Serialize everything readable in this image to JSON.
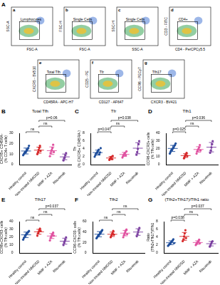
{
  "panel_a": {
    "label": "A",
    "plots": [
      {
        "label": "a",
        "x": "FSC-A",
        "y": "SSC-A",
        "gate": "Lymphocytes"
      },
      {
        "label": "b",
        "x": "FSC-A",
        "y": "FSC-H",
        "gate": "Single Cells"
      },
      {
        "label": "c",
        "x": "SSC-A",
        "y": "SSC-H",
        "gate": "Single Cells"
      },
      {
        "label": "d",
        "x": "CD4 - PerCPCy5.5",
        "y": "CD3 - FITC",
        "gate": "CD4+"
      },
      {
        "label": "e",
        "x": "CD45RA - APC-H7",
        "y": "CXCR5 - BV510",
        "gate": "Total Tfh"
      },
      {
        "label": "f",
        "x": "CD127 - AF647",
        "y": "CD25 - PE",
        "gate": "Tfr"
      },
      {
        "label": "g",
        "x": "CXCR3 - BV421",
        "y": "CCR6 - PECy7",
        "gate": "Tfh17"
      }
    ]
  },
  "chart_data": [
    {
      "type": "scatter",
      "label": "B",
      "title": "Total Tfh",
      "ylabel": [
        "CXCR5+ CD45RA-",
        "(% CD4+ T cells)"
      ],
      "categories": [
        "Healthy control",
        "Non-treated NMOSD",
        "MMF + AZA",
        "Rituximab"
      ],
      "colors": [
        "#1f4e9c",
        "#d62728",
        "#e052a0",
        "#7b3fa0"
      ],
      "values": [
        [
          9,
          10,
          11,
          12,
          12,
          13,
          14,
          15,
          16,
          18
        ],
        [
          10,
          12,
          14,
          16,
          18,
          13
        ],
        [
          8,
          11,
          13,
          14,
          16,
          19,
          12
        ],
        [
          4,
          6,
          7,
          9,
          11
        ]
      ],
      "mean": [
        13,
        13.8,
        13.3,
        7.4
      ],
      "sd": [
        2.8,
        2.9,
        3.6,
        2.7
      ],
      "ylim": [
        0,
        30
      ],
      "yticks": [
        0,
        10,
        20,
        30
      ],
      "comparisons": [
        {
          "groups": [
            0,
            1
          ],
          "label": "ns"
        },
        {
          "groups": [
            1,
            2
          ],
          "label": "ns"
        },
        {
          "groups": [
            1,
            3
          ],
          "label": "p=0.06"
        }
      ]
    },
    {
      "type": "scatter",
      "label": "C",
      "title": "Tfr",
      "ylabel": [
        "Tfr",
        "(% CXCR5+ CD45RA-)"
      ],
      "categories": [
        "Healthy control",
        "Non-treated NMOSD",
        "MMF + AZA",
        "Rituximab"
      ],
      "colors": [
        "#1f4e9c",
        "#d62728",
        "#e052a0",
        "#7b3fa0"
      ],
      "values": [
        [
          2.0,
          2.4,
          2.8,
          3.0,
          3.2,
          3.5,
          3.8,
          2.6,
          3.1,
          4.2
        ],
        [
          1.2,
          1.5,
          1.8,
          2.0,
          1.4,
          2.2
        ],
        [
          1.8,
          2.2,
          2.5,
          2.8,
          3.0,
          2.4,
          3.4
        ],
        [
          2.5,
          3.2,
          4.0,
          5.2,
          6.0
        ]
      ],
      "mean": [
        3.06,
        1.68,
        2.59,
        4.18
      ],
      "sd": [
        0.63,
        0.38,
        0.52,
        1.41
      ],
      "ylim": [
        0,
        8
      ],
      "yticks": [
        0,
        2,
        4,
        6,
        8
      ],
      "comparisons": [
        {
          "groups": [
            0,
            1
          ],
          "label": "p=0.047"
        },
        {
          "groups": [
            1,
            2
          ],
          "label": "ns"
        },
        {
          "groups": [
            1,
            3
          ],
          "label": "p=0.038"
        }
      ]
    },
    {
      "type": "scatter",
      "label": "D",
      "title": "Tfh1",
      "ylabel": [
        "CCR6-CXCR3+ cells",
        "(% Tfh cells)"
      ],
      "categories": [
        "Healthy control",
        "Non-treated NMOSD",
        "MMF + AZA",
        "Rituximab"
      ],
      "colors": [
        "#1f4e9c",
        "#d62728",
        "#e052a0",
        "#7b3fa0"
      ],
      "values": [
        [
          14,
          16,
          18,
          19,
          20,
          21,
          22,
          24,
          25,
          27
        ],
        [
          8,
          10,
          12,
          13,
          15,
          11
        ],
        [
          14,
          17,
          19,
          20,
          22,
          25,
          18
        ],
        [
          15,
          18,
          22,
          26,
          30
        ]
      ],
      "mean": [
        20.6,
        11.5,
        19.3,
        22.2
      ],
      "sd": [
        3.9,
        2.4,
        3.5,
        6.0
      ],
      "ylim": [
        0,
        40
      ],
      "yticks": [
        0,
        10,
        20,
        30,
        40
      ],
      "comparisons": [
        {
          "groups": [
            0,
            1
          ],
          "label": "p=0.025"
        },
        {
          "groups": [
            1,
            2
          ],
          "label": "ns"
        },
        {
          "groups": [
            1,
            3
          ],
          "label": "p=0.036"
        }
      ]
    },
    {
      "type": "scatter",
      "label": "E",
      "title": "Tfh17",
      "ylabel": [
        "CCR6+CXCR3- cells",
        "(% Tfh cells)"
      ],
      "categories": [
        "Healthy control",
        "Non-treated NMOSD",
        "MMF + AZA",
        "Rituximab"
      ],
      "colors": [
        "#1f4e9c",
        "#d62728",
        "#e052a0",
        "#7b3fa0"
      ],
      "values": [
        [
          17,
          19,
          20,
          22,
          23,
          24,
          25,
          26,
          27,
          28
        ],
        [
          22,
          25,
          27,
          29,
          31,
          28
        ],
        [
          16,
          19,
          21,
          23,
          24,
          26,
          22
        ],
        [
          10,
          13,
          15,
          17,
          20
        ]
      ],
      "mean": [
        23.1,
        27,
        21.6,
        15
      ],
      "sd": [
        3.5,
        3.1,
        3.2,
        3.8
      ],
      "ylim": [
        0,
        40
      ],
      "yticks": [
        0,
        10,
        20,
        30,
        40
      ],
      "comparisons": [
        {
          "groups": [
            0,
            1
          ],
          "label": "ns"
        },
        {
          "groups": [
            1,
            2
          ],
          "label": "ns"
        },
        {
          "groups": [
            1,
            3
          ],
          "label": "p=0.037"
        }
      ]
    },
    {
      "type": "scatter",
      "label": "F",
      "title": "Tfh2",
      "ylabel": [
        "CCR6-CXCR3- cells",
        "(% Tfh cells)"
      ],
      "categories": [
        "Healthy control",
        "Non-treated NMOSD",
        "MMF + AZA",
        "Rituximab"
      ],
      "colors": [
        "#1f4e9c",
        "#d62728",
        "#e052a0",
        "#7b3fa0"
      ],
      "values": [
        [
          28,
          30,
          32,
          34,
          35,
          36,
          38,
          40,
          42,
          44
        ],
        [
          30,
          33,
          36,
          38,
          42,
          35
        ],
        [
          30,
          34,
          37,
          40,
          43,
          45,
          36
        ],
        [
          32,
          36,
          40,
          44,
          48
        ]
      ],
      "mean": [
        35.9,
        35.7,
        37.9,
        40
      ],
      "sd": [
        5.0,
        4.2,
        5.2,
        6.3
      ],
      "ylim": [
        0,
        60
      ],
      "yticks": [
        0,
        20,
        40,
        60
      ],
      "comparisons": [
        {
          "groups": [
            0,
            1
          ],
          "label": "ns"
        },
        {
          "groups": [
            1,
            2
          ],
          "label": "ns"
        },
        {
          "groups": [
            1,
            3
          ],
          "label": "ns"
        }
      ]
    },
    {
      "type": "scatter",
      "label": "G",
      "title": "(Tfh2+Tfh17)/Tfh1 ratio",
      "ylabel": [
        "Ratio",
        "(Tfh2+Tfh17)/Tfh1"
      ],
      "categories": [
        "Healthy control",
        "Non-treated NMOSD",
        "MMF + AZA",
        "Rituximab"
      ],
      "colors": [
        "#1f4e9c",
        "#d62728",
        "#e052a0",
        "#7b3fa0"
      ],
      "values": [
        [
          1.8,
          2.0,
          2.2,
          2.4,
          2.6,
          2.8,
          3.0,
          3.2,
          3.5,
          2.5
        ],
        [
          3.0,
          3.5,
          4.2,
          5.0,
          5.8,
          3.8
        ],
        [
          2.0,
          2.3,
          2.6,
          2.8,
          3.0,
          3.4,
          2.5
        ],
        [
          1.6,
          2.0,
          2.4,
          2.8,
          3.0
        ]
      ],
      "mean": [
        2.6,
        4.22,
        2.66,
        2.36
      ],
      "sd": [
        0.5,
        1.0,
        0.45,
        0.57
      ],
      "ylim": [
        0,
        8
      ],
      "yticks": [
        0,
        2,
        4,
        6,
        8
      ],
      "comparisons": [
        {
          "groups": [
            0,
            1
          ],
          "label": "p=0.038"
        },
        {
          "groups": [
            1,
            2
          ],
          "label": "ns"
        },
        {
          "groups": [
            1,
            3
          ],
          "label": "p=0.037"
        }
      ]
    }
  ]
}
